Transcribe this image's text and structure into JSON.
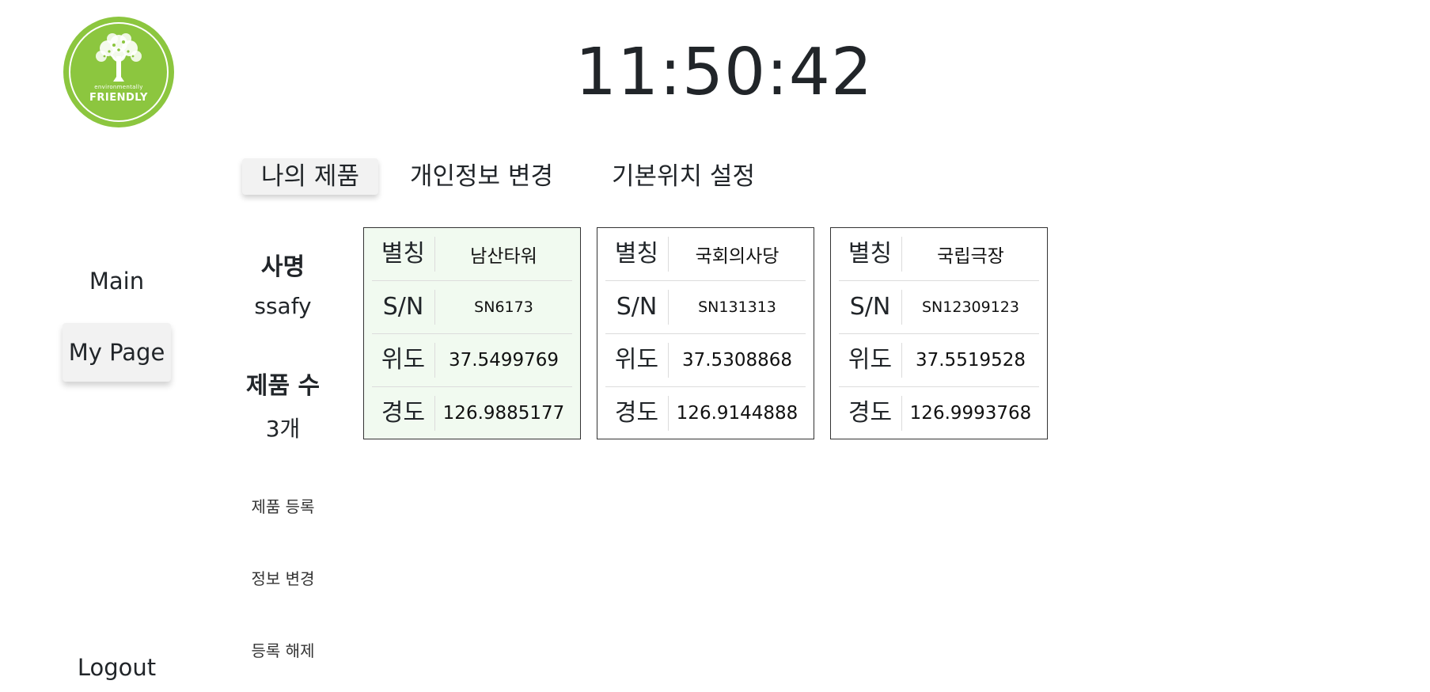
{
  "logo": {
    "top_text": "environmentally",
    "main_text": "FRIENDLY",
    "color": "#8cc63f"
  },
  "clock": {
    "time": "11:50:42"
  },
  "nav": {
    "main": "Main",
    "my_page": "My Page",
    "logout": "Logout"
  },
  "tabs": [
    {
      "label": "나의 제품",
      "active": true
    },
    {
      "label": "개인정보 변경",
      "active": false
    },
    {
      "label": "기본위치 설정",
      "active": false
    }
  ],
  "profile": {
    "company_label": "사명",
    "company_value": "ssafy",
    "count_label": "제품 수",
    "count_value": "3개"
  },
  "actions": {
    "register": "제품 등록",
    "edit_info": "정보 변경",
    "unregister": "등록 해제"
  },
  "row_labels": {
    "alias": "별칭",
    "serial": "S/N",
    "latitude": "위도",
    "longitude": "경도"
  },
  "products": [
    {
      "alias": "남산타워",
      "serial": "SN6173",
      "latitude": "37.5499769",
      "longitude": "126.9885177",
      "selected": true
    },
    {
      "alias": "국회의사당",
      "serial": "SN131313",
      "latitude": "37.5308868",
      "longitude": "126.9144888",
      "selected": false
    },
    {
      "alias": "국립극장",
      "serial": "SN12309123",
      "latitude": "37.5519528",
      "longitude": "126.9993768",
      "selected": false
    }
  ]
}
